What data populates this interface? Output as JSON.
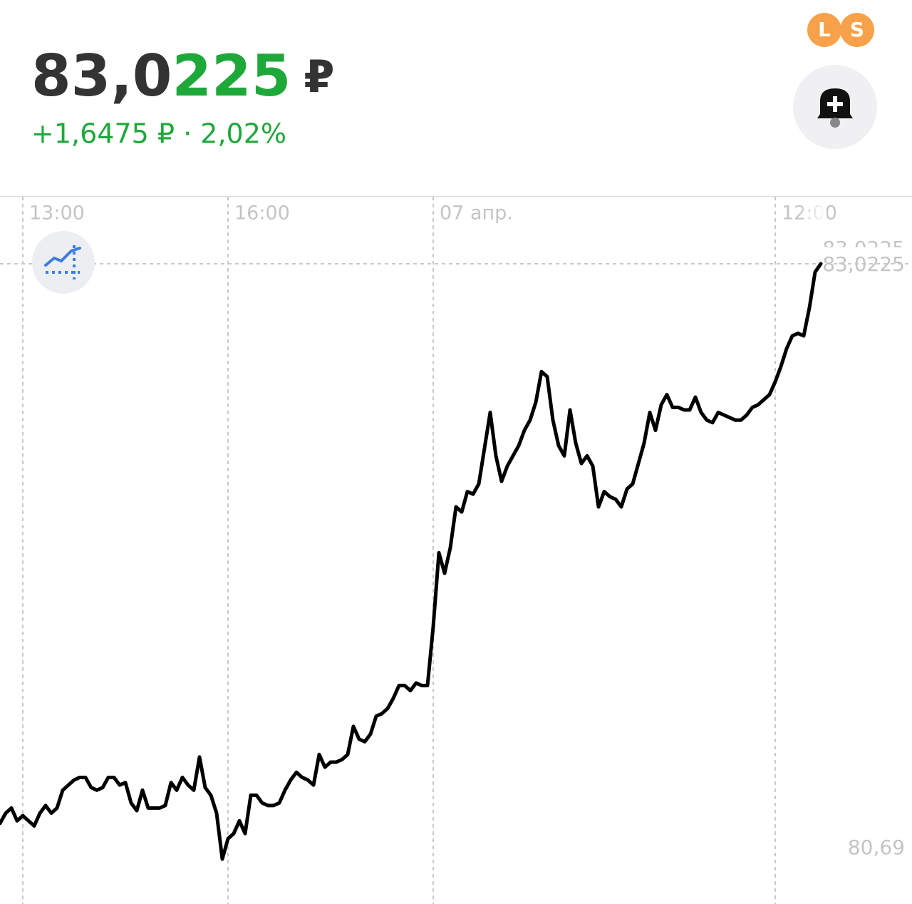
{
  "header": {
    "price_main": "83,0",
    "price_accent": "225",
    "currency": "₽",
    "change": "+1,6475 ₽ · 2,02%",
    "badges": [
      "L",
      "S"
    ]
  },
  "chart_data": {
    "type": "line",
    "categories": [
      null,
      null,
      null,
      null,
      "13:00",
      null,
      null,
      null,
      null,
      null,
      null,
      null,
      null,
      null,
      null,
      null,
      null,
      null,
      null,
      null,
      null,
      null,
      null,
      null,
      null,
      null,
      null,
      null,
      null,
      null,
      null,
      null,
      null,
      null,
      null,
      null,
      null,
      null,
      null,
      null,
      "16:00",
      null,
      null,
      null,
      null,
      null,
      null,
      null,
      null,
      null,
      null,
      null,
      null,
      null,
      null,
      null,
      null,
      null,
      null,
      null,
      null,
      null,
      null,
      null,
      null,
      null,
      null,
      null,
      null,
      null,
      null,
      null,
      null,
      null,
      null,
      null,
      "07 апр.",
      null,
      null,
      null,
      null,
      null,
      null,
      null,
      null,
      null,
      null,
      null,
      null,
      null,
      null,
      null,
      null,
      null,
      null,
      null,
      null,
      null,
      null,
      null,
      null,
      null,
      null,
      null,
      null,
      null,
      null,
      null,
      null,
      null,
      null,
      null,
      null,
      null,
      null,
      null,
      null,
      null,
      null,
      null,
      null,
      null,
      null,
      null,
      null,
      null,
      null,
      null,
      null,
      null,
      null,
      null,
      null,
      null,
      null,
      null,
      "12:00",
      null,
      null,
      null,
      null,
      null,
      null,
      null,
      null
    ],
    "series": [
      {
        "color": "#000000",
        "values": [
          80.83,
          80.87,
          80.89,
          80.84,
          80.86,
          80.84,
          80.82,
          80.87,
          80.9,
          80.87,
          80.89,
          80.96,
          80.98,
          81.0,
          81.01,
          81.01,
          80.97,
          80.96,
          80.97,
          81.01,
          81.01,
          80.98,
          80.99,
          80.91,
          80.88,
          80.96,
          80.89,
          80.89,
          80.89,
          80.9,
          80.99,
          80.96,
          81.01,
          80.98,
          80.96,
          81.09,
          80.97,
          80.94,
          80.87,
          80.69,
          80.77,
          80.79,
          80.84,
          80.79,
          80.94,
          80.94,
          80.91,
          80.9,
          80.9,
          80.91,
          80.96,
          81.0,
          81.03,
          81.01,
          81.0,
          80.98,
          81.1,
          81.05,
          81.07,
          81.07,
          81.08,
          81.1,
          81.21,
          81.16,
          81.15,
          81.18,
          81.25,
          81.26,
          81.28,
          81.32,
          81.37,
          81.37,
          81.35,
          81.38,
          81.37,
          81.37,
          81.6,
          81.89,
          81.81,
          81.91,
          82.07,
          82.05,
          82.13,
          82.12,
          82.16,
          82.3,
          82.44,
          82.27,
          82.17,
          82.23,
          82.27,
          82.31,
          82.37,
          82.41,
          82.48,
          82.6,
          82.58,
          82.41,
          82.31,
          82.27,
          82.45,
          82.32,
          82.24,
          82.27,
          82.23,
          82.07,
          82.13,
          82.11,
          82.1,
          82.07,
          82.14,
          82.16,
          82.24,
          82.32,
          82.44,
          82.37,
          82.47,
          82.51,
          82.46,
          82.46,
          82.45,
          82.45,
          82.5,
          82.44,
          82.41,
          82.4,
          82.44,
          82.43,
          82.42,
          82.41,
          82.41,
          82.43,
          82.46,
          82.47,
          82.49,
          82.51,
          82.56,
          82.62,
          82.69,
          82.74,
          82.75,
          82.74,
          82.85,
          82.99,
          83.0225
        ]
      }
    ],
    "ylim": [
      80.69,
      83.0225
    ],
    "yticks": [
      {
        "value": 83.0225,
        "label": "83,0225"
      },
      {
        "value": 80.69,
        "label": "80,69"
      }
    ],
    "grid": true
  }
}
